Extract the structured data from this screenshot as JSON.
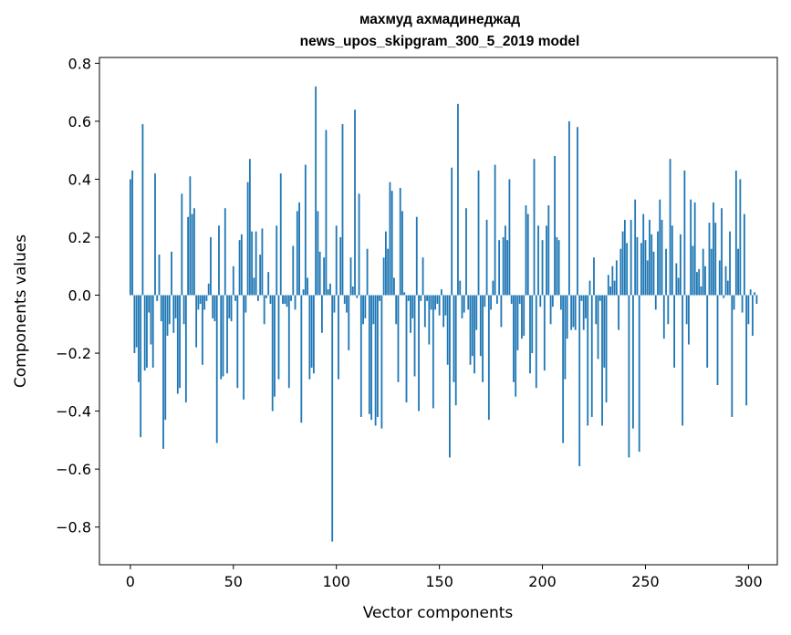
{
  "chart_data": {
    "type": "bar",
    "title_line1": "махмуд ахмадинеджад",
    "title_line2": "news_upos_skipgram_300_5_2019 model",
    "xlabel": "Vector components",
    "ylabel": "Components values",
    "xlim": [
      -15,
      314
    ],
    "ylim": [
      -0.93,
      0.82
    ],
    "x_ticks": [
      0,
      50,
      100,
      150,
      200,
      250,
      300
    ],
    "x_tick_labels": [
      "0",
      "50",
      "100",
      "150",
      "200",
      "250",
      "300"
    ],
    "y_ticks": [
      -0.8,
      -0.6,
      -0.4,
      -0.2,
      0.0,
      0.2,
      0.4,
      0.6,
      0.8
    ],
    "y_tick_labels": [
      "−0.8",
      "−0.6",
      "−0.4",
      "−0.2",
      "0.0",
      "0.2",
      "0.4",
      "0.6",
      "0.8"
    ],
    "bar_color": "#1f77b4",
    "values": [
      0.4,
      0.43,
      -0.2,
      -0.18,
      -0.3,
      -0.49,
      0.59,
      -0.26,
      -0.25,
      -0.06,
      -0.17,
      -0.25,
      0.42,
      -0.02,
      0.14,
      -0.09,
      -0.53,
      -0.43,
      -0.14,
      -0.1,
      0.15,
      -0.13,
      -0.08,
      -0.34,
      -0.32,
      0.35,
      -0.1,
      -0.37,
      0.27,
      0.41,
      0.28,
      0.3,
      -0.18,
      -0.05,
      -0.03,
      -0.24,
      -0.05,
      -0.02,
      0.04,
      0.2,
      -0.08,
      -0.09,
      -0.51,
      0.24,
      -0.29,
      -0.28,
      0.3,
      -0.27,
      -0.08,
      -0.09,
      0.1,
      -0.02,
      -0.32,
      0.19,
      0.21,
      -0.36,
      -0.06,
      0.39,
      0.47,
      0.22,
      0.06,
      0.22,
      -0.02,
      0.14,
      0.23,
      -0.1,
      -0.01,
      0.08,
      -0.03,
      -0.4,
      -0.35,
      0.24,
      -0.29,
      0.42,
      -0.03,
      -0.03,
      -0.04,
      -0.32,
      -0.02,
      0.17,
      -0.05,
      0.29,
      0.32,
      -0.44,
      0.02,
      0.45,
      0.06,
      -0.29,
      -0.25,
      -0.27,
      0.72,
      0.29,
      0.15,
      -0.13,
      0.13,
      0.57,
      0.02,
      0.04,
      -0.85,
      -0.06,
      0.24,
      -0.29,
      0.2,
      0.59,
      -0.03,
      -0.06,
      -0.19,
      0.13,
      0.03,
      0.64,
      -0.01,
      0.35,
      -0.42,
      -0.1,
      -0.08,
      0.16,
      -0.41,
      -0.43,
      -0.1,
      -0.45,
      -0.42,
      -0.02,
      -0.46,
      0.13,
      0.22,
      0.16,
      0.39,
      0.36,
      0.06,
      -0.1,
      -0.3,
      0.37,
      0.29,
      0.01,
      -0.37,
      -0.02,
      -0.13,
      -0.08,
      -0.28,
      0.27,
      -0.4,
      -0.02,
      0.13,
      -0.11,
      -0.02,
      -0.17,
      -0.05,
      -0.39,
      -0.05,
      -0.03,
      -0.07,
      0.02,
      -0.11,
      -0.07,
      -0.24,
      -0.56,
      0.44,
      -0.3,
      -0.38,
      0.66,
      0.05,
      -0.08,
      -0.06,
      0.3,
      -0.05,
      -0.24,
      -0.21,
      -0.27,
      -0.12,
      0.43,
      -0.21,
      -0.3,
      -0.04,
      0.26,
      -0.43,
      -0.05,
      0.05,
      0.45,
      -0.03,
      0.19,
      -0.11,
      0.2,
      0.24,
      0.19,
      0.4,
      -0.03,
      -0.3,
      -0.35,
      -0.19,
      -0.03,
      -0.15,
      -0.14,
      0.31,
      0.28,
      -0.27,
      -0.2,
      0.47,
      -0.32,
      0.24,
      -0.04,
      0.19,
      -0.26,
      0.24,
      0.31,
      -0.1,
      -0.04,
      0.48,
      0.2,
      0.19,
      -0.05,
      -0.51,
      -0.29,
      -0.15,
      0.6,
      -0.12,
      -0.11,
      -0.12,
      0.58,
      -0.59,
      -0.02,
      -0.12,
      -0.08,
      -0.45,
      0.05,
      -0.42,
      0.13,
      -0.1,
      -0.22,
      -0.02,
      -0.45,
      -0.25,
      -0.37,
      0.07,
      0.03,
      0.1,
      0.05,
      0.12,
      -0.12,
      0.16,
      0.22,
      0.26,
      0.18,
      -0.56,
      0.26,
      -0.46,
      0.33,
      0.2,
      -0.54,
      0.18,
      0.28,
      0.19,
      0.12,
      0.26,
      0.21,
      0.15,
      -0.05,
      0.22,
      0.33,
      0.26,
      -0.15,
      0.16,
      -0.1,
      0.47,
      0.24,
      -0.25,
      0.11,
      0.06,
      0.21,
      -0.45,
      0.43,
      -0.1,
      -0.17,
      0.33,
      0.17,
      0.32,
      0.08,
      0.09,
      0.03,
      0.16,
      0.1,
      -0.25,
      0.25,
      0.16,
      0.32,
      0.25,
      -0.31,
      0.12,
      0.3,
      -0.01,
      0.1,
      0.05,
      0.22,
      -0.42,
      -0.05,
      0.43,
      0.16,
      0.4,
      -0.06,
      0.28,
      -0.38,
      -0.1,
      0.02,
      -0.14,
      0.01,
      -0.03
    ]
  }
}
